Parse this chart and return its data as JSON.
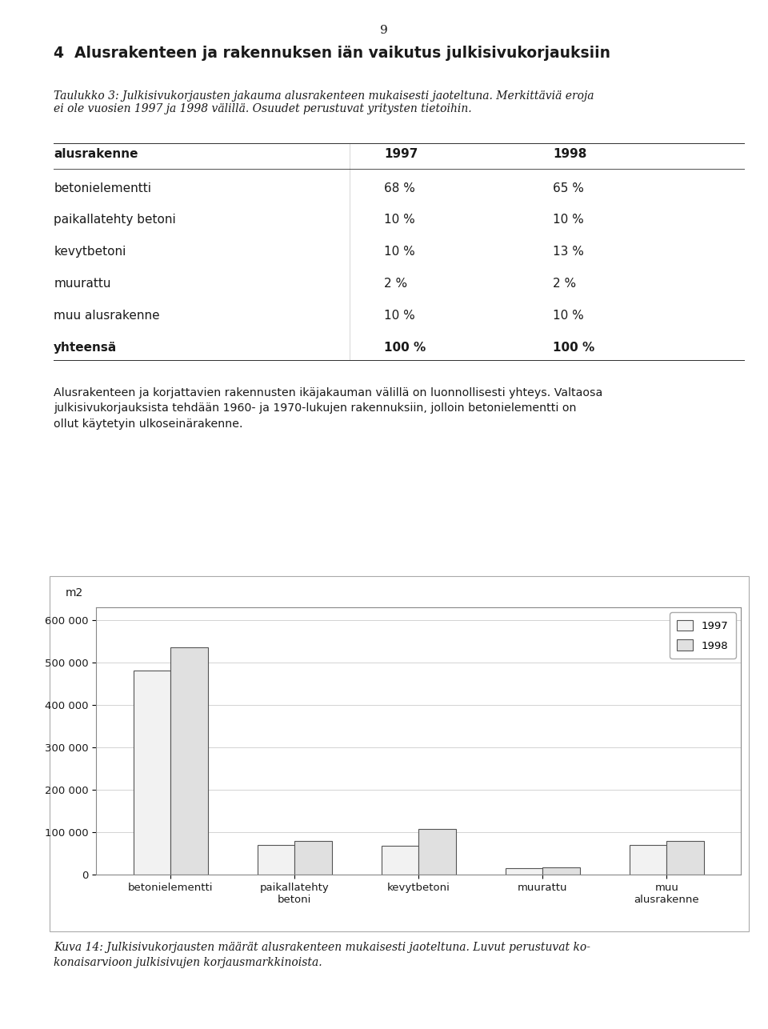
{
  "page_number": "9",
  "heading_number": "4",
  "heading_text": "Alusrakenteen ja rakennuksen iän vaikutus julkisivukorjauksiin",
  "caption_italic": "Taulukko 3: Julkisivukorjausten jakauma alusrakenteen mukaisesti jaoteltuna. Merkittäviä eroja\nei ole vuosien 1997 ja 1998 välillä. Osuudet perustuvat yritysten tietoihin.",
  "table_header": [
    "alusrakenne",
    "1997",
    "1998"
  ],
  "table_rows": [
    [
      "betonielementti",
      "68 %",
      "65 %"
    ],
    [
      "paikallatehty betoni",
      "10 %",
      "10 %"
    ],
    [
      "kevytbetoni",
      "10 %",
      "13 %"
    ],
    [
      "muurattu",
      "2 %",
      "2 %"
    ],
    [
      "muu alusrakenne",
      "10 %",
      "10 %"
    ],
    [
      "yhteensä",
      "100 %",
      "100 %"
    ]
  ],
  "table_bold_row": "yhteensä",
  "paragraph_text": "Alusrakenteen ja korjattavien rakennusten ikäjakauman välillä on luonnollisesti yhteys. Valtaosa\njulkisivukorjauksista tehdään 1960- ja 1970-lukujen rakennuksiin, jolloin betonielementti on\nollut käytetyin ulkoseinärakenne.",
  "chart_ylabel": "m2",
  "chart_yticks": [
    0,
    100000,
    200000,
    300000,
    400000,
    500000,
    600000
  ],
  "chart_ytick_labels": [
    "0",
    "100 000",
    "200 000",
    "300 000",
    "400 000",
    "500 000",
    "600 000"
  ],
  "chart_categories": [
    "betonielementti",
    "paikallatehty\nbetoni",
    "kevytbetoni",
    "muurattu",
    "muu\nalusrakenne"
  ],
  "values_1997": [
    480000,
    70000,
    68000,
    15000,
    70000
  ],
  "values_1998": [
    535000,
    80000,
    107000,
    17000,
    80000
  ],
  "bar_color_1997": "#f2f2f2",
  "bar_color_1998": "#e0e0e0",
  "bar_edgecolor": "#555555",
  "legend_labels": [
    "1997",
    "1998"
  ],
  "figure_caption": "Kuva 14: Julkisivukorjausten määrät alusrakenteen mukaisesti jaoteltuna. Luvut perustuvat ko-\nkonaisarvioon julkisivujen korjausmarkkinoista.",
  "background_color": "#ffffff",
  "text_color": "#1a1a1a",
  "chart_box_color": "#ffffff",
  "chart_grid_color": "#cccccc"
}
